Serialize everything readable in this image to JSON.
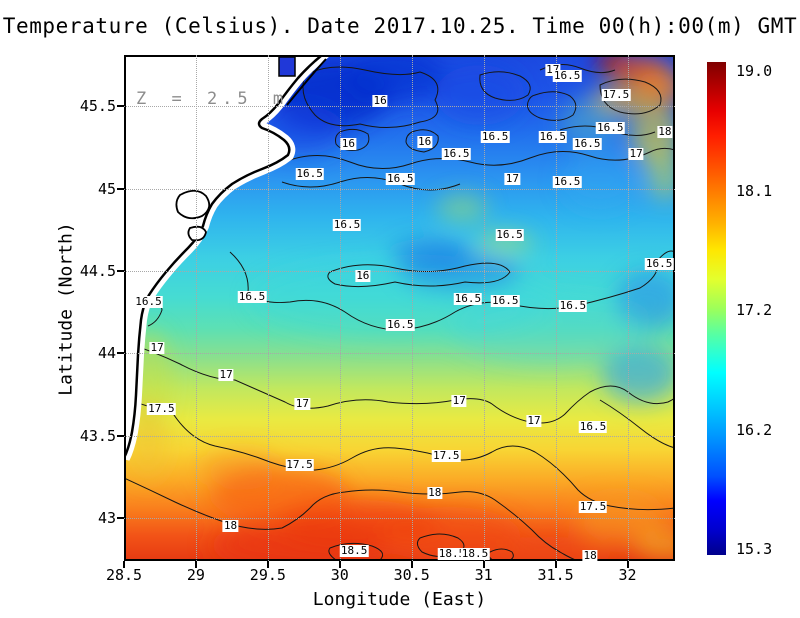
{
  "chart_data": {
    "type": "heatmap",
    "title": "Temperature (Celsius). Date 2017.10.25. Time 00(h):00(m) GMT",
    "xlabel": "Longitude (East)",
    "ylabel": "Latitude (North)",
    "annotation": "Z = 2.5 m",
    "units": "Celsius",
    "grid": true,
    "xlim": [
      28.5,
      32.33
    ],
    "ylim": [
      42.74,
      45.81
    ],
    "x_ticks": [
      28.5,
      29,
      29.5,
      30,
      30.5,
      31,
      31.5,
      32
    ],
    "y_ticks": [
      43,
      43.5,
      44,
      44.5,
      45,
      45.5
    ],
    "contour_levels": [
      16,
      16.5,
      17,
      17.5,
      18,
      18.5
    ],
    "colorbar": {
      "min": 15.3,
      "max": 19.0,
      "ticks": [
        "19.0",
        "18.1",
        "17.2",
        "16.2",
        "15.3"
      ],
      "top_color": "#7f0000",
      "bottom_color": "#00008b"
    },
    "contour_labels": [
      {
        "v": "17",
        "lon": 31.48,
        "lat": 45.72
      },
      {
        "v": "16.5",
        "lon": 31.58,
        "lat": 45.68
      },
      {
        "v": "17.5",
        "lon": 31.92,
        "lat": 45.57
      },
      {
        "v": "16",
        "lon": 30.28,
        "lat": 45.53
      },
      {
        "v": "16.5",
        "lon": 31.88,
        "lat": 45.37
      },
      {
        "v": "18",
        "lon": 32.26,
        "lat": 45.34
      },
      {
        "v": "16.5",
        "lon": 31.48,
        "lat": 45.31
      },
      {
        "v": "16.5",
        "lon": 31.72,
        "lat": 45.27
      },
      {
        "v": "17",
        "lon": 32.06,
        "lat": 45.21
      },
      {
        "v": "16",
        "lon": 30.06,
        "lat": 45.27
      },
      {
        "v": "16",
        "lon": 30.59,
        "lat": 45.28
      },
      {
        "v": "16.5",
        "lon": 31.08,
        "lat": 45.31
      },
      {
        "v": "16.5",
        "lon": 30.81,
        "lat": 45.21
      },
      {
        "v": "16.5",
        "lon": 29.79,
        "lat": 45.09
      },
      {
        "v": "16.5",
        "lon": 30.42,
        "lat": 45.06
      },
      {
        "v": "17",
        "lon": 31.2,
        "lat": 45.06
      },
      {
        "v": "16.5",
        "lon": 31.58,
        "lat": 45.04
      },
      {
        "v": "16.5",
        "lon": 30.05,
        "lat": 44.78
      },
      {
        "v": "16.5",
        "lon": 31.18,
        "lat": 44.72
      },
      {
        "v": "16.5",
        "lon": 32.22,
        "lat": 44.54
      },
      {
        "v": "16",
        "lon": 30.16,
        "lat": 44.47
      },
      {
        "v": "16.5",
        "lon": 29.39,
        "lat": 44.34
      },
      {
        "v": "16.5",
        "lon": 28.67,
        "lat": 44.31
      },
      {
        "v": "16.5",
        "lon": 30.89,
        "lat": 44.33
      },
      {
        "v": "16.5",
        "lon": 31.15,
        "lat": 44.32
      },
      {
        "v": "16.5",
        "lon": 31.62,
        "lat": 44.29
      },
      {
        "v": "16.5",
        "lon": 30.42,
        "lat": 44.17
      },
      {
        "v": "17",
        "lon": 28.73,
        "lat": 44.03
      },
      {
        "v": "17",
        "lon": 29.21,
        "lat": 43.87
      },
      {
        "v": "17",
        "lon": 29.74,
        "lat": 43.69
      },
      {
        "v": "17",
        "lon": 30.83,
        "lat": 43.71
      },
      {
        "v": "17.5",
        "lon": 28.76,
        "lat": 43.66
      },
      {
        "v": "17",
        "lon": 31.35,
        "lat": 43.59
      },
      {
        "v": "16.5",
        "lon": 31.76,
        "lat": 43.55
      },
      {
        "v": "17.5",
        "lon": 30.74,
        "lat": 43.38
      },
      {
        "v": "17.5",
        "lon": 29.72,
        "lat": 43.32
      },
      {
        "v": "18",
        "lon": 30.66,
        "lat": 43.15
      },
      {
        "v": "17.5",
        "lon": 31.76,
        "lat": 43.07
      },
      {
        "v": "18",
        "lon": 29.24,
        "lat": 42.95
      },
      {
        "v": "18.5",
        "lon": 30.1,
        "lat": 42.8
      },
      {
        "v": "18.5",
        "lon": 30.78,
        "lat": 42.78
      },
      {
        "v": "18.5",
        "lon": 30.94,
        "lat": 42.78
      },
      {
        "v": "18",
        "lon": 31.74,
        "lat": 42.77
      }
    ]
  }
}
